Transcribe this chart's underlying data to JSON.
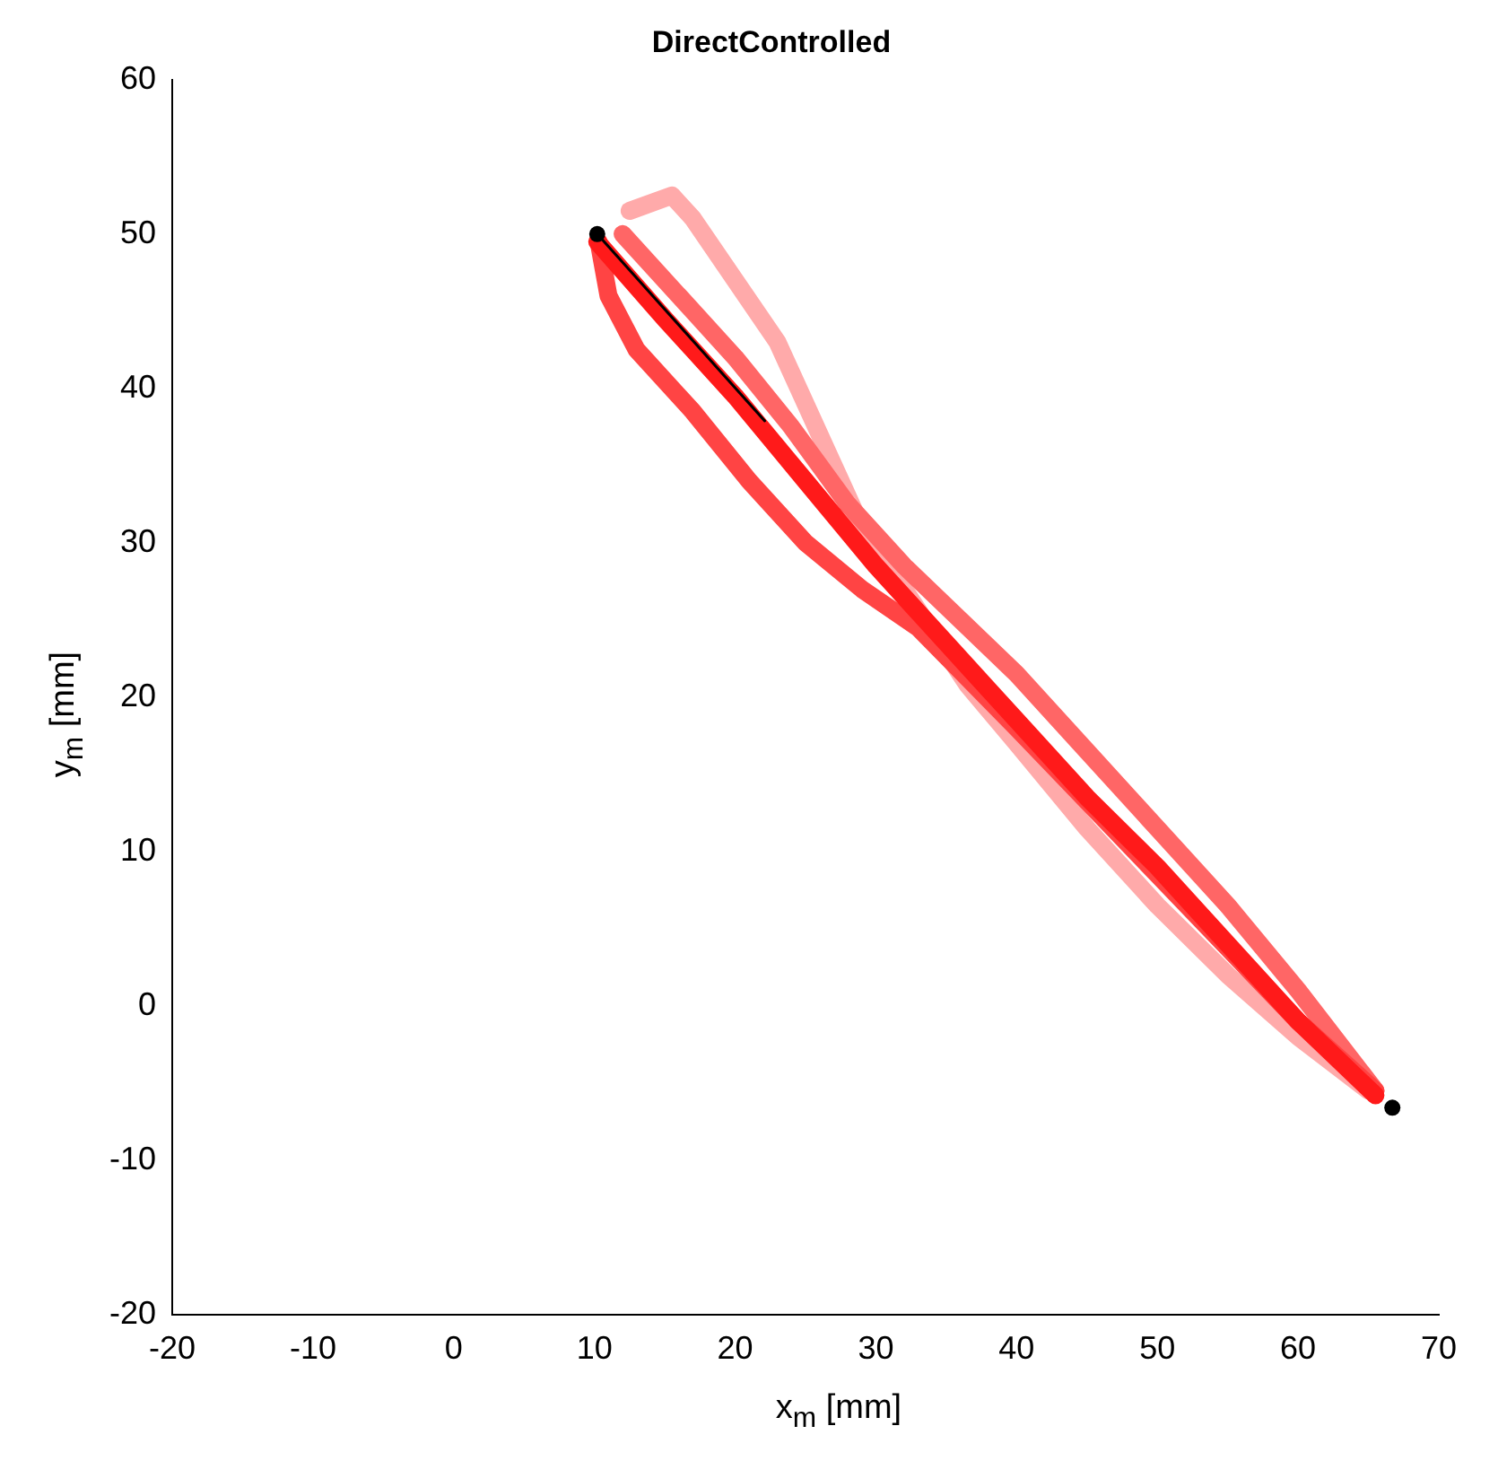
{
  "chart_data": {
    "type": "line",
    "title": "DirectControlled",
    "xlabel": "x$_{m}$ [mm]",
    "ylabel": "y$_{m}$ [mm]",
    "xlim": [
      -20,
      70
    ],
    "xticks": [
      -20,
      -10,
      0,
      10,
      20,
      30,
      40,
      50,
      60,
      70
    ],
    "ylim": [
      -20,
      60
    ],
    "yticks": [
      -20,
      -10,
      0,
      10,
      20,
      30,
      40,
      50,
      60
    ],
    "grid": false,
    "legend": false,
    "marker": "none",
    "line_style": "solid",
    "series": [
      {
        "type": "scatter",
        "marker": "circle",
        "color": "#000000",
        "x": [
          10.2,
          66.7
        ],
        "values": [
          50,
          -6.6
        ]
      },
      {
        "color": "#000000",
        "x": [
          10.2,
          22.1
        ],
        "values": [
          50,
          37.9
        ]
      },
      {
        "color": "#ff1a1a",
        "x": [
          10.2,
          15,
          20,
          25,
          30,
          35,
          40,
          45,
          50,
          55,
          60,
          65.5
        ],
        "values": [
          49.5,
          44.5,
          39.5,
          34,
          28.5,
          23.5,
          18.5,
          13.5,
          9,
          4,
          -1,
          -5.8
        ]
      },
      {
        "color": "#ff4444",
        "x": [
          10.3,
          11,
          13,
          17,
          21,
          25,
          29,
          33,
          40,
          50,
          60,
          65.5
        ],
        "values": [
          49.5,
          46,
          42.5,
          38.5,
          34,
          30,
          27,
          24.5,
          18,
          8.5,
          -1,
          -5.5
        ]
      },
      {
        "color": "#ff6666",
        "x": [
          12,
          16,
          20,
          24,
          28,
          32,
          36,
          40,
          45,
          50,
          55,
          60,
          65.5
        ],
        "values": [
          50,
          46,
          42,
          37.5,
          32.5,
          28.5,
          25,
          21.5,
          16.5,
          11.5,
          6.5,
          1,
          -5.5
        ]
      },
      {
        "color": "#ffaaaa",
        "x": [
          12.5,
          15.5,
          17,
          20,
          23,
          25.5,
          27.5,
          29,
          32,
          36.5,
          40,
          45,
          50,
          55,
          60,
          65
        ],
        "values": [
          51.5,
          52.5,
          51,
          47,
          43,
          38,
          34,
          31,
          27,
          20.8,
          17,
          11.5,
          6.5,
          2,
          -2,
          -5.5
        ]
      }
    ]
  }
}
